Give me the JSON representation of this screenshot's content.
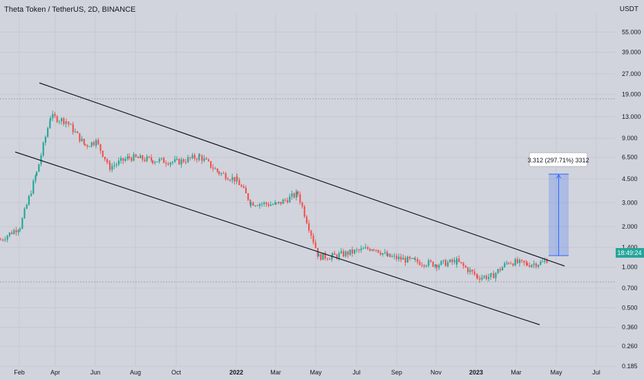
{
  "chart_data": {
    "type": "candlestick",
    "title": "Theta Token / TetherUS, 2D, BINANCE",
    "y_unit": "USDT",
    "y_scale": "log",
    "ylim": [
      0.185,
      75
    ],
    "y_ticks": [
      "55.000",
      "39.000",
      "27.000",
      "19.000",
      "13.000",
      "9.000",
      "6.500",
      "4.500",
      "3.000",
      "2.000",
      "1.400",
      "1.000",
      "0.700",
      "0.500",
      "0.360",
      "0.260",
      "0.185"
    ],
    "x_ticks": [
      "Feb",
      "Apr",
      "Jun",
      "Aug",
      "Oct",
      "2022",
      "Mar",
      "May",
      "Jul",
      "Sep",
      "Nov",
      "2023",
      "Mar",
      "May",
      "Jul"
    ],
    "price_label": "18:49:24",
    "series": [
      {
        "name": "",
        "style": "ohlc",
        "approximate_close_path": [
          {
            "x": "Jan",
            "y": 1.6
          },
          {
            "x": "Feb",
            "y": 2.0
          },
          {
            "x": "Mar",
            "y": 5.0
          },
          {
            "x": "Mar",
            "y": 13.0
          },
          {
            "x": "Apr",
            "y": 12.0
          },
          {
            "x": "May",
            "y": 8.0
          },
          {
            "x": "Jun",
            "y": 8.5
          },
          {
            "x": "Jul",
            "y": 5.5
          },
          {
            "x": "Aug",
            "y": 6.5
          },
          {
            "x": "Sep",
            "y": 6.2
          },
          {
            "x": "Oct",
            "y": 6.0
          },
          {
            "x": "Nov",
            "y": 6.6
          },
          {
            "x": "Dec",
            "y": 5.0
          },
          {
            "x": "2022",
            "y": 4.4
          },
          {
            "x": "Feb",
            "y": 3.0
          },
          {
            "x": "Mar",
            "y": 2.9
          },
          {
            "x": "Apr",
            "y": 3.5
          },
          {
            "x": "May",
            "y": 1.2
          },
          {
            "x": "Jun",
            "y": 1.2
          },
          {
            "x": "Jul",
            "y": 1.4
          },
          {
            "x": "Aug",
            "y": 1.2
          },
          {
            "x": "Sep",
            "y": 1.1
          },
          {
            "x": "Oct",
            "y": 1.05
          },
          {
            "x": "Nov",
            "y": 1.1
          },
          {
            "x": "Dec",
            "y": 0.85
          },
          {
            "x": "2023",
            "y": 0.85
          },
          {
            "x": "Feb",
            "y": 1.1
          },
          {
            "x": "Mar",
            "y": 1.05
          },
          {
            "x": "Apr",
            "y": 1.08
          },
          {
            "x": "Apr",
            "y": 1.15
          }
        ]
      }
    ],
    "annotations": {
      "measure_label": "3.312 (297.71%) 3312"
    },
    "grid": true,
    "legend": "none",
    "colors": {
      "background": "#d1d4dc",
      "up": "#26a69a",
      "down": "#ef5350",
      "channel": "#131722",
      "measure": "#2962ff",
      "price_tag": "#26a69a"
    }
  }
}
